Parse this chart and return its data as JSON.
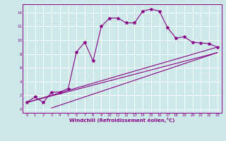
{
  "xlabel": "Windchill (Refroidissement éolien,°C)",
  "bg_color": "#cce8e8",
  "line_color": "#880088",
  "grid_color": "#ffffff",
  "xlim": [
    -0.5,
    23.5
  ],
  "ylim": [
    -0.5,
    15.2
  ],
  "xticks": [
    0,
    1,
    2,
    3,
    4,
    5,
    6,
    7,
    8,
    9,
    10,
    11,
    12,
    13,
    14,
    15,
    16,
    17,
    18,
    19,
    20,
    21,
    22,
    23
  ],
  "yticks": [
    0,
    2,
    4,
    6,
    8,
    10,
    12,
    14
  ],
  "series1_x": [
    0,
    1,
    2,
    3,
    4,
    5,
    6,
    7,
    8,
    9,
    10,
    11,
    12,
    13,
    14,
    15,
    16,
    17,
    18,
    19,
    20,
    21,
    22,
    23
  ],
  "series1_y": [
    1.0,
    1.8,
    1.0,
    2.5,
    2.5,
    3.0,
    8.3,
    9.7,
    7.0,
    12.0,
    13.2,
    13.2,
    12.5,
    12.5,
    14.2,
    14.5,
    14.2,
    11.8,
    10.3,
    10.5,
    9.7,
    9.6,
    9.5,
    9.0
  ],
  "series2_x": [
    0,
    23
  ],
  "series2_y": [
    1.0,
    9.0
  ],
  "series3_x": [
    0,
    23
  ],
  "series3_y": [
    1.0,
    8.2
  ],
  "series4_x": [
    3,
    23
  ],
  "series4_y": [
    0.2,
    8.2
  ],
  "figsize": [
    3.2,
    2.0
  ],
  "dpi": 100
}
